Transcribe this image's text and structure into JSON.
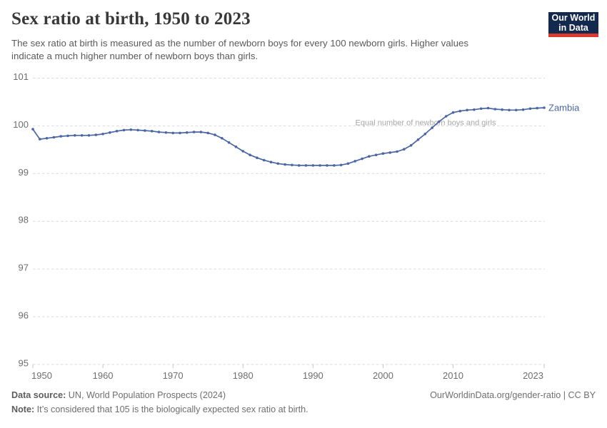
{
  "header": {
    "title": "Sex ratio at birth, 1950 to 2023",
    "subtitle_lines": {
      "line1": "The sex ratio at birth is measured as the number of newborn boys for every 100 newborn girls. Higher values",
      "line2": "indicate a much higher number of newborn boys than girls."
    },
    "logo": {
      "line1": "Our World",
      "line2": "in Data"
    }
  },
  "chart_data": {
    "type": "line",
    "title": "Sex ratio at birth, 1950 to 2023",
    "xlabel": "",
    "ylabel": "",
    "xlim": [
      1950,
      2023
    ],
    "ylim": [
      95,
      101
    ],
    "grid": "dashed-horizontal",
    "legend_position": "end-of-line-label",
    "y_ticks": [
      95,
      96,
      97,
      98,
      99,
      100,
      101
    ],
    "x_ticks": [
      1950,
      1960,
      1970,
      1980,
      1990,
      2000,
      2010,
      2023
    ],
    "annotation": "Equal number of newborn boys and girls",
    "annotation_y": 100,
    "series": [
      {
        "name": "Zambia",
        "color": "#4a66a5",
        "x": [
          1950,
          1951,
          1952,
          1953,
          1954,
          1955,
          1956,
          1957,
          1958,
          1959,
          1960,
          1961,
          1962,
          1963,
          1964,
          1965,
          1966,
          1967,
          1968,
          1969,
          1970,
          1971,
          1972,
          1973,
          1974,
          1975,
          1976,
          1977,
          1978,
          1979,
          1980,
          1981,
          1982,
          1983,
          1984,
          1985,
          1986,
          1987,
          1988,
          1989,
          1990,
          1991,
          1992,
          1993,
          1994,
          1995,
          1996,
          1997,
          1998,
          1999,
          2000,
          2001,
          2002,
          2003,
          2004,
          2005,
          2006,
          2007,
          2008,
          2009,
          2010,
          2011,
          2012,
          2013,
          2014,
          2015,
          2016,
          2017,
          2018,
          2019,
          2020,
          2021,
          2022,
          2023
        ],
        "values": [
          99.93,
          99.72,
          99.74,
          99.76,
          99.78,
          99.79,
          99.8,
          99.8,
          99.8,
          99.81,
          99.83,
          99.86,
          99.89,
          99.91,
          99.92,
          99.91,
          99.9,
          99.89,
          99.87,
          99.86,
          99.85,
          99.85,
          99.86,
          99.87,
          99.87,
          99.85,
          99.81,
          99.74,
          99.65,
          99.56,
          99.47,
          99.39,
          99.33,
          99.28,
          99.24,
          99.21,
          99.19,
          99.18,
          99.17,
          99.17,
          99.17,
          99.17,
          99.17,
          99.17,
          99.18,
          99.21,
          99.26,
          99.31,
          99.36,
          99.39,
          99.42,
          99.44,
          99.46,
          99.51,
          99.59,
          99.71,
          99.83,
          99.96,
          100.09,
          100.2,
          100.28,
          100.31,
          100.33,
          100.34,
          100.36,
          100.37,
          100.35,
          100.34,
          100.33,
          100.33,
          100.34,
          100.36,
          100.37,
          100.38
        ]
      }
    ]
  },
  "colors": {
    "line": "#4a66a5",
    "gridline": "#dadada",
    "tick": "#c4c4c4",
    "axis_label": "#6e6e6e",
    "annotation": "#a8a8a8",
    "logo_navy": "#14294e",
    "logo_red": "#dc3832"
  },
  "footer": {
    "datasource_label": "Data source:",
    "datasource_text": " UN, World Population Prospects (2024)",
    "note_label": "Note:",
    "note_text": " It’s considered that 105 is the biologically expected sex ratio at birth.",
    "link": "OurWorldinData.org/gender-ratio | CC BY"
  }
}
